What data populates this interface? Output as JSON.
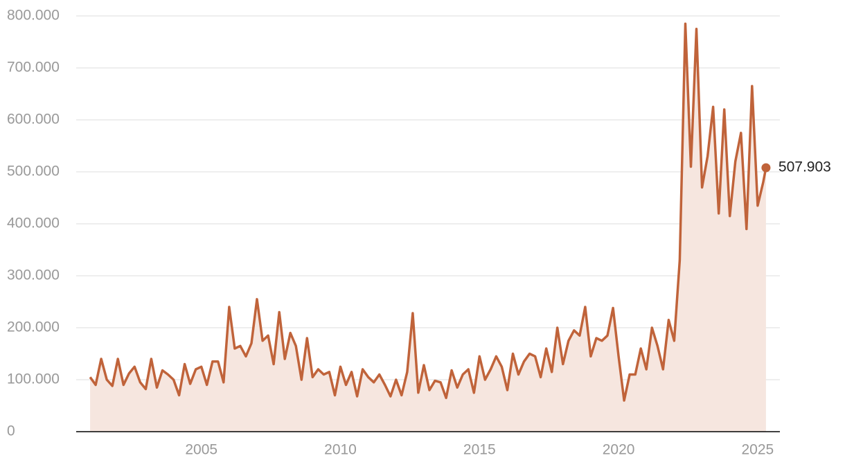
{
  "chart_data": {
    "type": "area_line",
    "x": [
      2001.0,
      2001.2,
      2001.4,
      2001.6,
      2001.8,
      2002.0,
      2002.2,
      2002.4,
      2002.6,
      2002.8,
      2003.0,
      2003.2,
      2003.4,
      2003.6,
      2003.8,
      2004.0,
      2004.2,
      2004.4,
      2004.6,
      2004.8,
      2005.0,
      2005.2,
      2005.4,
      2005.6,
      2005.8,
      2006.0,
      2006.2,
      2006.4,
      2006.6,
      2006.8,
      2007.0,
      2007.2,
      2007.4,
      2007.6,
      2007.8,
      2008.0,
      2008.2,
      2008.4,
      2008.6,
      2008.8,
      2009.0,
      2009.2,
      2009.4,
      2009.6,
      2009.8,
      2010.0,
      2010.2,
      2010.4,
      2010.6,
      2010.8,
      2011.0,
      2011.2,
      2011.4,
      2011.6,
      2011.8,
      2012.0,
      2012.2,
      2012.4,
      2012.6,
      2012.8,
      2013.0,
      2013.2,
      2013.4,
      2013.6,
      2013.8,
      2014.0,
      2014.2,
      2014.4,
      2014.6,
      2014.8,
      2015.0,
      2015.2,
      2015.4,
      2015.6,
      2015.8,
      2016.0,
      2016.2,
      2016.4,
      2016.6,
      2016.8,
      2017.0,
      2017.2,
      2017.4,
      2017.6,
      2017.8,
      2018.0,
      2018.2,
      2018.4,
      2018.6,
      2018.8,
      2019.0,
      2019.2,
      2019.4,
      2019.6,
      2019.8,
      2020.0,
      2020.2,
      2020.4,
      2020.6,
      2020.8,
      2021.0,
      2021.2,
      2021.4,
      2021.6,
      2021.8,
      2022.0,
      2022.2,
      2022.4,
      2022.6,
      2022.8,
      2023.0,
      2023.2,
      2023.4,
      2023.6,
      2023.8,
      2024.0,
      2024.2,
      2024.4,
      2024.6,
      2024.8,
      2025.0,
      2025.2,
      2025.3
    ],
    "values": [
      105000,
      90000,
      140000,
      100000,
      88000,
      140000,
      90000,
      112000,
      125000,
      95000,
      82000,
      140000,
      85000,
      118000,
      110000,
      100000,
      70000,
      130000,
      92000,
      120000,
      125000,
      90000,
      135000,
      135000,
      95000,
      240000,
      160000,
      165000,
      145000,
      170000,
      255000,
      175000,
      185000,
      130000,
      230000,
      140000,
      190000,
      165000,
      100000,
      180000,
      105000,
      120000,
      110000,
      115000,
      70000,
      125000,
      90000,
      115000,
      68000,
      120000,
      105000,
      95000,
      110000,
      90000,
      68000,
      100000,
      70000,
      115000,
      228000,
      75000,
      128000,
      80000,
      98000,
      95000,
      65000,
      118000,
      85000,
      110000,
      120000,
      75000,
      145000,
      100000,
      120000,
      145000,
      125000,
      80000,
      150000,
      110000,
      135000,
      150000,
      145000,
      105000,
      160000,
      115000,
      200000,
      130000,
      175000,
      195000,
      185000,
      240000,
      145000,
      180000,
      175000,
      185000,
      238000,
      145000,
      60000,
      110000,
      110000,
      160000,
      120000,
      200000,
      165000,
      120000,
      215000,
      175000,
      330000,
      785000,
      510000,
      775000,
      470000,
      530000,
      625000,
      420000,
      620000,
      415000,
      520000,
      575000,
      390000,
      665000,
      435000,
      480000,
      507903
    ],
    "value_labels": [
      null,
      null,
      null,
      null,
      null,
      null,
      null,
      null,
      null,
      null,
      null,
      null,
      null,
      null,
      null,
      null,
      null,
      null,
      null,
      null,
      null,
      null,
      null,
      null,
      null,
      null,
      null,
      null,
      null,
      null,
      null,
      null,
      null,
      null,
      null,
      null,
      null,
      null,
      null,
      null,
      null,
      null,
      null,
      null,
      null,
      null,
      null,
      null,
      null,
      null,
      null,
      null,
      null,
      null,
      null,
      null,
      null,
      null,
      null,
      null,
      null,
      null,
      null,
      null,
      null,
      null,
      null,
      null,
      null,
      null,
      null,
      null,
      null,
      null,
      null,
      null,
      null,
      null,
      null,
      null,
      null,
      null,
      null,
      null,
      null,
      null,
      null,
      null,
      null,
      null,
      null,
      null,
      null,
      null,
      null,
      null,
      null,
      null,
      null,
      null,
      null,
      null,
      null,
      null,
      null,
      null,
      null,
      null,
      null,
      null,
      null,
      null,
      null,
      null,
      null,
      null,
      null,
      null,
      null,
      null,
      null,
      null,
      "507.903"
    ],
    "color": "#c0633a",
    "fill_color": "#f6e6df",
    "xlim": [
      2000.5,
      2025.8
    ],
    "xticks": [
      2005,
      2010,
      2015,
      2020,
      2025
    ],
    "ylim": [
      0,
      800000
    ],
    "yticks": [
      {
        "value": 0,
        "label": "0"
      },
      {
        "value": 100000,
        "label": "100.000"
      },
      {
        "value": 200000,
        "label": "200.000"
      },
      {
        "value": 300000,
        "label": "300.000"
      },
      {
        "value": 400000,
        "label": "400.000"
      },
      {
        "value": 500000,
        "label": "500.000"
      },
      {
        "value": 600000,
        "label": "600.000"
      },
      {
        "value": 700000,
        "label": "700.000"
      },
      {
        "value": 800000,
        "label": "800.000"
      }
    ],
    "grid": true
  }
}
